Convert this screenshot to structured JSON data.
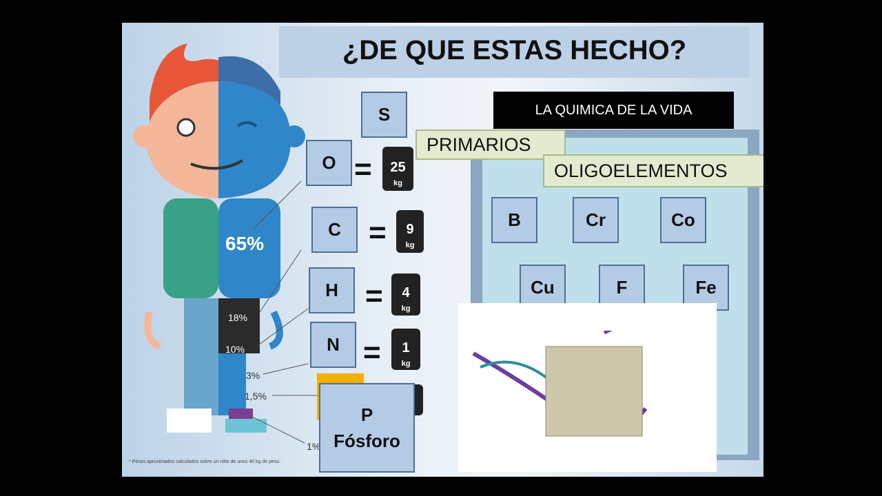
{
  "title": "¿DE QUE ESTAS HECHO?",
  "subtitle": "LA QUIMICA DE LA VIDA",
  "groups": [
    "PRIMARIOS",
    "OLIGOELEMENTOS"
  ],
  "percentages": [
    "65%",
    "18%",
    "10%",
    "3%",
    "1,5%",
    "1%"
  ],
  "primary_elements": [
    {
      "symbol": "S"
    },
    {
      "symbol": "O",
      "weight": "25",
      "unit": "kg"
    },
    {
      "symbol": "C",
      "weight": "9",
      "unit": "kg"
    },
    {
      "symbol": "H",
      "weight": "4",
      "unit": "kg"
    },
    {
      "symbol": "N",
      "weight": "1",
      "unit": "kg"
    }
  ],
  "phosphorus": {
    "symbol": "P",
    "name": "Fósforo"
  },
  "trace_elements": [
    "B",
    "Cr",
    "Co",
    "Cu",
    "F",
    "Fe"
  ],
  "footnote": "* Pesos aproximados calculados sobre un niño de unos 40 kg de peso."
}
